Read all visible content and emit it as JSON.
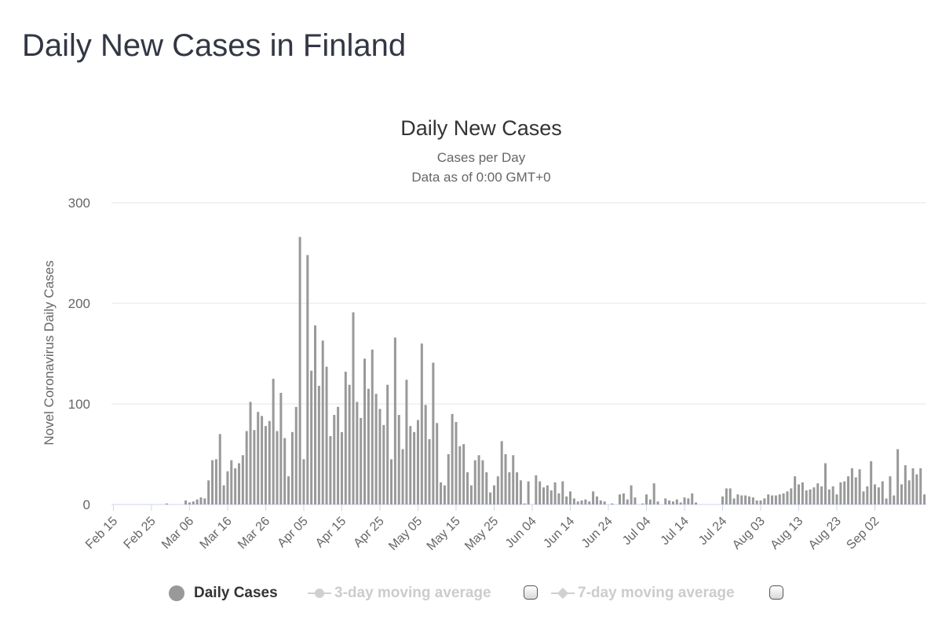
{
  "page": {
    "title": "Daily New Cases in Finland"
  },
  "legend": {
    "daily_cases": "Daily Cases",
    "ma3": "3-day moving average",
    "ma7": "7-day moving average"
  },
  "colors": {
    "bar": "#999999",
    "grid": "#e6e6e6",
    "text": "#666666",
    "title": "#333333",
    "legend_inactive": "#cccccc"
  },
  "chart_data": {
    "type": "bar",
    "title": "Daily New Cases",
    "subtitle": "Cases per Day",
    "subtitle2": "Data as of 0:00 GMT+0",
    "ylabel": "Novel Coronavirus Daily Cases",
    "xlabel": "",
    "ylim": [
      0,
      300
    ],
    "yticks": [
      0,
      100,
      200,
      300
    ],
    "grid": true,
    "x_start": "2020-02-15",
    "xtick_labels": [
      "Feb 15",
      "Feb 25",
      "Mar 06",
      "Mar 16",
      "Mar 26",
      "Apr 05",
      "Apr 15",
      "Apr 25",
      "May 05",
      "May 15",
      "May 25",
      "Jun 04",
      "Jun 14",
      "Jun 24",
      "Jul 04",
      "Jul 14",
      "Jul 24",
      "Aug 03",
      "Aug 13",
      "Aug 23",
      "Sep 02"
    ],
    "series": [
      {
        "name": "Daily Cases",
        "values": [
          0,
          0,
          0,
          0,
          0,
          0,
          0,
          0,
          0,
          0,
          0,
          0,
          0,
          0,
          1,
          0,
          0,
          0,
          0,
          4,
          2,
          3,
          5,
          7,
          6,
          24,
          44,
          45,
          70,
          19,
          33,
          44,
          36,
          41,
          49,
          73,
          102,
          74,
          92,
          88,
          78,
          83,
          125,
          73,
          111,
          66,
          28,
          72,
          97,
          266,
          45,
          248,
          133,
          178,
          118,
          163,
          137,
          68,
          89,
          97,
          72,
          132,
          119,
          191,
          102,
          86,
          145,
          115,
          154,
          110,
          95,
          79,
          119,
          45,
          166,
          89,
          55,
          124,
          78,
          72,
          84,
          160,
          99,
          65,
          141,
          81,
          22,
          19,
          50,
          90,
          82,
          58,
          60,
          32,
          19,
          44,
          49,
          44,
          32,
          12,
          19,
          28,
          63,
          50,
          32,
          49,
          32,
          24,
          1,
          23,
          0,
          29,
          23,
          17,
          19,
          14,
          22,
          11,
          23,
          8,
          13,
          6,
          3,
          4,
          5,
          3,
          13,
          8,
          4,
          3,
          0,
          1,
          0,
          10,
          11,
          5,
          19,
          7,
          0,
          1,
          10,
          5,
          21,
          3,
          0,
          6,
          4,
          3,
          5,
          2,
          7,
          6,
          11,
          2,
          0,
          0,
          0,
          0,
          0,
          0,
          8,
          16,
          16,
          6,
          10,
          9,
          9,
          8,
          7,
          4,
          4,
          6,
          10,
          9,
          9,
          10,
          11,
          13,
          16,
          28,
          20,
          22,
          14,
          15,
          17,
          21,
          18,
          41,
          15,
          18,
          10,
          22,
          23,
          28,
          36,
          27,
          35,
          13,
          18,
          43,
          20,
          17,
          23,
          6,
          28,
          9,
          55,
          20,
          39,
          24,
          36,
          30,
          36,
          10
        ]
      }
    ]
  }
}
